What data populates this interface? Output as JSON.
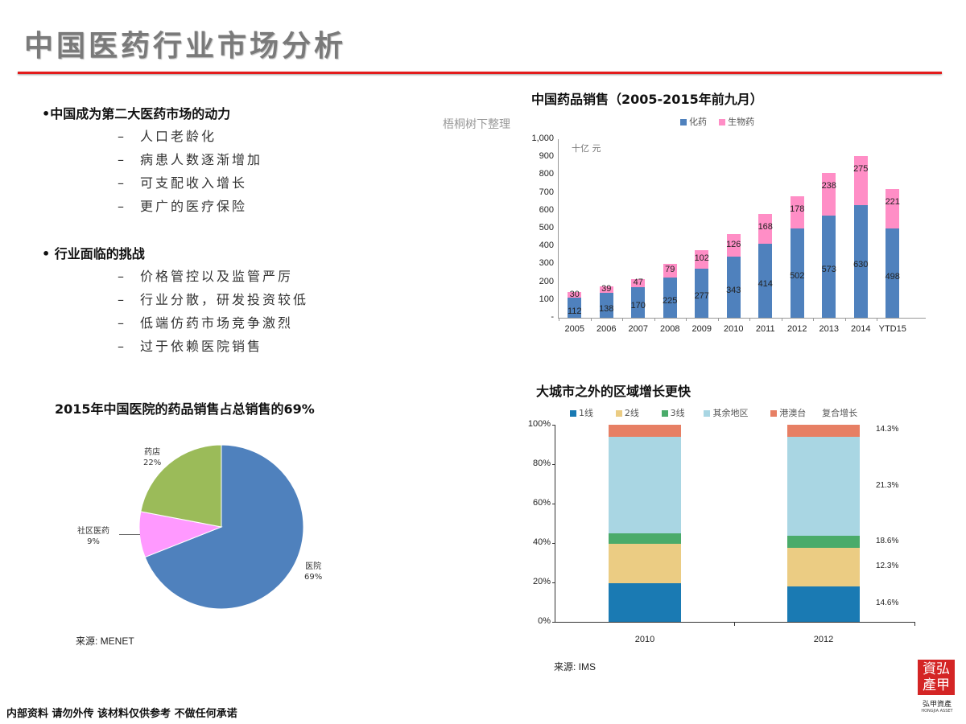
{
  "page": {
    "title": "中国医药行业市场分析",
    "footer": "内部资料 请勿外传 该材料仅供参考 不做任何承诺",
    "logo": {
      "line1": "資弘",
      "line2": "產甲",
      "caption": "弘甲資產",
      "subcaption": "HONGJIA ASSET"
    },
    "watermark": "梧桐树下整理"
  },
  "bullets": [
    {
      "heading": "•中国成为第二大医药市场的动力",
      "items": [
        "人口老龄化",
        "病患人数逐渐增加",
        "可支配收入增长",
        "更广的医疗保险"
      ]
    },
    {
      "heading": "• 行业面临的挑战",
      "items": [
        "价格管控以及监管严厉",
        "行业分散，研发投资较低",
        "低端仿药市场竞争激烈",
        "过于依赖医院销售"
      ]
    }
  ],
  "chart_data": [
    {
      "type": "bar",
      "stacked": true,
      "title": "中国药品销售（2005-2015年前九月）",
      "unit_label": "十亿 元",
      "xlabel": "",
      "ylabel": "十亿 元",
      "ylim": [
        0,
        1000
      ],
      "yticks": [
        "1,000",
        "900",
        "800",
        "700",
        "600",
        "500",
        "400",
        "300",
        "200",
        "100",
        "-"
      ],
      "categories": [
        "2005",
        "2006",
        "2007",
        "2008",
        "2009",
        "2010",
        "2011",
        "2012",
        "2013",
        "2014",
        "YTD15"
      ],
      "series": [
        {
          "name": "化药",
          "color": "#4f81bd",
          "values": [
            112,
            138,
            170,
            225,
            277,
            343,
            414,
            502,
            573,
            630,
            498
          ]
        },
        {
          "name": "生物药",
          "color": "#ff8ec6",
          "values": [
            30,
            39,
            47,
            79,
            102,
            126,
            168,
            178,
            238,
            275,
            221
          ]
        }
      ],
      "legend_position": "top-right",
      "grid": false
    },
    {
      "type": "pie",
      "title": "2015年中国医院的药品销售占总销售的69%",
      "slices": [
        {
          "label": "医院",
          "value": 69,
          "display": "69%",
          "color": "#4f81bd"
        },
        {
          "label": "社区医药",
          "value": 9,
          "display": "9%",
          "color": "#ff99ff"
        },
        {
          "label": "药店",
          "value": 22,
          "display": "22%",
          "color": "#9bbb59"
        }
      ],
      "source": "来源: MENET"
    },
    {
      "type": "bar",
      "stacked": true,
      "percent": true,
      "title": "大城市之外的区域增长更快",
      "categories": [
        "2010",
        "2012"
      ],
      "yticks": [
        "100%",
        "80%",
        "60%",
        "40%",
        "20%",
        "0%"
      ],
      "ylim": [
        0,
        100
      ],
      "series": [
        {
          "name": "1线",
          "color": "#1a7ab3",
          "values": [
            19.5,
            18.0
          ],
          "cagr": "14.6%"
        },
        {
          "name": "2线",
          "color": "#ebcc83",
          "values": [
            20.0,
            19.5
          ],
          "cagr": "12.3%"
        },
        {
          "name": "3线",
          "color": "#4aab6a",
          "values": [
            5.5,
            6.0
          ],
          "cagr": "18.6%"
        },
        {
          "name": "其余地区",
          "color": "#a9d6e3",
          "values": [
            49.0,
            50.5
          ],
          "cagr": "21.3%"
        },
        {
          "name": "港澳台",
          "color": "#e77f64",
          "values": [
            6.0,
            6.0
          ],
          "cagr": "14.3%"
        }
      ],
      "cagr_header": "复合增长",
      "source": "来源: IMS"
    }
  ]
}
